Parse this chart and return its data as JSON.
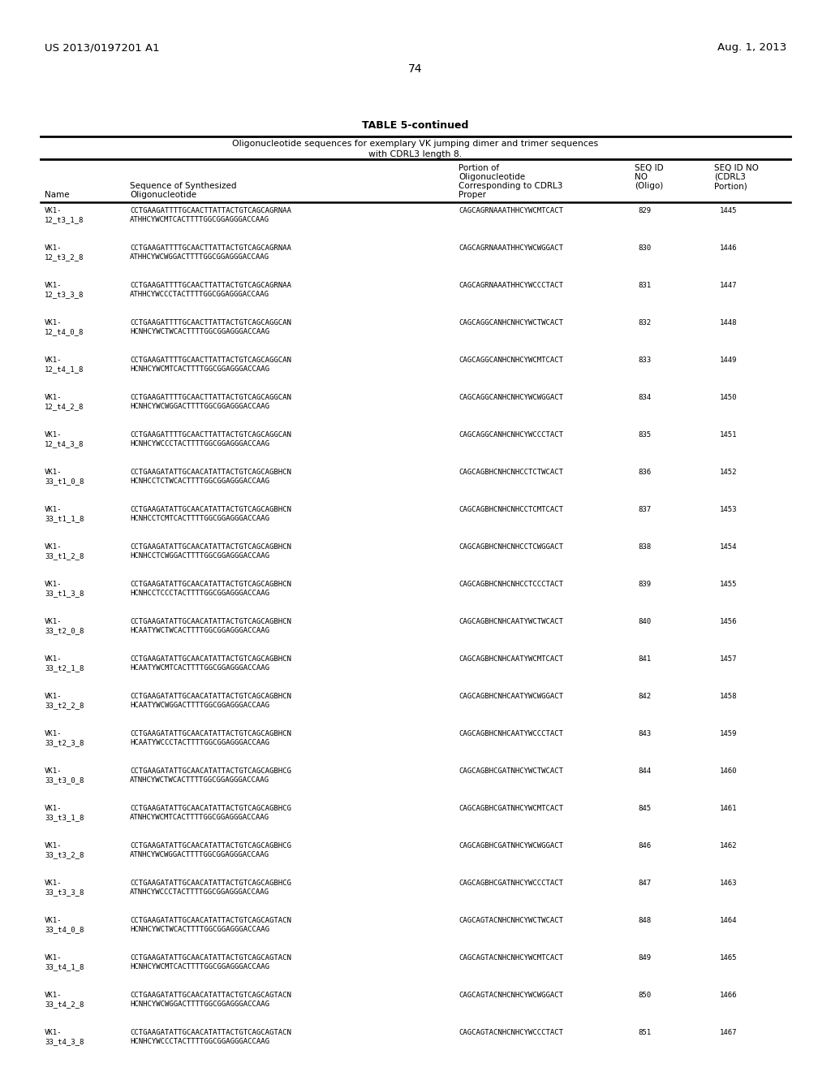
{
  "patent_left": "US 2013/0197201 A1",
  "patent_right": "Aug. 1, 2013",
  "page_number": "74",
  "table_title": "TABLE 5-continued",
  "table_subtitle1": "Oligonucleotide sequences for exemplary VK jumping dimer and trimer sequences",
  "table_subtitle2": "with CDRL3 length 8.",
  "rows": [
    {
      "name1": "VK1-",
      "name2": "12_t3_1_8",
      "seq1": "CCTGAAGATTTTGCAACTTATTACTGTCAGCAGRNAA",
      "seq2": "ATHHCYWCMTCACTTTTGGCGGAGGGACCAAG",
      "cdrl": "CAGCAGRNAAATHHCYWCMTCACT",
      "seqid": "829",
      "cdrl3": "1445"
    },
    {
      "name1": "VK1-",
      "name2": "12_t3_2_8",
      "seq1": "CCTGAAGATTTTGCAACTTATTACTGTCAGCAGRNAA",
      "seq2": "ATHHCYWCWGGACTTTTGGCGGAGGGACCAAG",
      "cdrl": "CAGCAGRNAAATHHCYWCWGGACT",
      "seqid": "830",
      "cdrl3": "1446"
    },
    {
      "name1": "VK1-",
      "name2": "12_t3_3_8",
      "seq1": "CCTGAAGATTTTGCAACTTATTACTGTCAGCAGRNAA",
      "seq2": "ATHHCYWCCCTACTTTTGGCGGAGGGACCAAG",
      "cdrl": "CAGCAGRNAAATHHCYWCCCTACT",
      "seqid": "831",
      "cdrl3": "1447"
    },
    {
      "name1": "VK1-",
      "name2": "12_t4_0_8",
      "seq1": "CCTGAAGATTTTGCAACTTATTACTGTCAGCAGGCAN",
      "seq2": "HCNHCYWCTWCACTTTTGGCGGAGGGACCAAG",
      "cdrl": "CAGCAGGCANHCNHCYWCTWCACT",
      "seqid": "832",
      "cdrl3": "1448"
    },
    {
      "name1": "VK1-",
      "name2": "12_t4_1_8",
      "seq1": "CCTGAAGATTTTGCAACTTATTACTGTCAGCAGGCAN",
      "seq2": "HCNHCYWCMTCACTTTTGGCGGAGGGACCAAG",
      "cdrl": "CAGCAGGCANHCNHCYWCMTCACT",
      "seqid": "833",
      "cdrl3": "1449"
    },
    {
      "name1": "VK1-",
      "name2": "12_t4_2_8",
      "seq1": "CCTGAAGATTTTGCAACTTATTACTGTCAGCAGGCAN",
      "seq2": "HCNHCYWCWGGACTTTTGGCGGAGGGACCAAG",
      "cdrl": "CAGCAGGCANHCNHCYWCWGGACT",
      "seqid": "834",
      "cdrl3": "1450"
    },
    {
      "name1": "VK1-",
      "name2": "12_t4_3_8",
      "seq1": "CCTGAAGATTTTGCAACTTATTACTGTCAGCAGGCAN",
      "seq2": "HCNHCYWCCCTACTTTTGGCGGAGGGACCAAG",
      "cdrl": "CAGCAGGCANHCNHCYWCCCTACT",
      "seqid": "835",
      "cdrl3": "1451"
    },
    {
      "name1": "VK1-",
      "name2": "33_t1_0_8",
      "seq1": "CCTGAAGATATTGCAACATATTACTGTCAGCAGBHCN",
      "seq2": "HCNHCCTCTWCACTTTTGGCGGAGGGACCAAG",
      "cdrl": "CAGCAGBHCNHCNHCCTCTWCACT",
      "seqid": "836",
      "cdrl3": "1452"
    },
    {
      "name1": "VK1-",
      "name2": "33_t1_1_8",
      "seq1": "CCTGAAGATATTGCAACATATTACTGTCAGCAGBHCN",
      "seq2": "HCNHCCTCMTCACTTTTGGCGGAGGGACCAAG",
      "cdrl": "CAGCAGBHCNHCNHCCTCMTCACT",
      "seqid": "837",
      "cdrl3": "1453"
    },
    {
      "name1": "VK1-",
      "name2": "33_t1_2_8",
      "seq1": "CCTGAAGATATTGCAACATATTACTGTCAGCAGBHCN",
      "seq2": "HCNHCCTCWGGACTTTTGGCGGAGGGACCAAG",
      "cdrl": "CAGCAGBHCNHCNHCCTCWGGACT",
      "seqid": "838",
      "cdrl3": "1454"
    },
    {
      "name1": "VK1-",
      "name2": "33_t1_3_8",
      "seq1": "CCTGAAGATATTGCAACATATTACTGTCAGCAGBHCN",
      "seq2": "HCNHCCTCCCTACTTTTGGCGGAGGGACCAAG",
      "cdrl": "CAGCAGBHCNHCNHCCTCCCTACT",
      "seqid": "839",
      "cdrl3": "1455"
    },
    {
      "name1": "VK1-",
      "name2": "33_t2_0_8",
      "seq1": "CCTGAAGATATTGCAACATATTACTGTCAGCAGBHCN",
      "seq2": "HCAATYWCTWCACTTTTGGCGGAGGGACCAAG",
      "cdrl": "CAGCAGBHCNHCAATYWCTWCACT",
      "seqid": "840",
      "cdrl3": "1456"
    },
    {
      "name1": "VK1-",
      "name2": "33_t2_1_8",
      "seq1": "CCTGAAGATATTGCAACATATTACTGTCAGCAGBHCN",
      "seq2": "HCAATYWCMTCACTTTTGGCGGAGGGACCAAG",
      "cdrl": "CAGCAGBHCNHCAATYWCMTCACT",
      "seqid": "841",
      "cdrl3": "1457"
    },
    {
      "name1": "VK1-",
      "name2": "33_t2_2_8",
      "seq1": "CCTGAAGATATTGCAACATATTACTGTCAGCAGBHCN",
      "seq2": "HCAATYWCWGGACTTTTGGCGGAGGGACCAAG",
      "cdrl": "CAGCAGBHCNHCAATYWCWGGACT",
      "seqid": "842",
      "cdrl3": "1458"
    },
    {
      "name1": "VK1-",
      "name2": "33_t2_3_8",
      "seq1": "CCTGAAGATATTGCAACATATTACTGTCAGCAGBHCN",
      "seq2": "HCAATYWCCCTACTTTTGGCGGAGGGACCAAG",
      "cdrl": "CAGCAGBHCNHCAATYWCCCTACT",
      "seqid": "843",
      "cdrl3": "1459"
    },
    {
      "name1": "VK1-",
      "name2": "33_t3_0_8",
      "seq1": "CCTGAAGATATTGCAACATATTACTGTCAGCAGBHCG",
      "seq2": "ATNHCYWCTWCACTTTTGGCGGAGGGACCAAG",
      "cdrl": "CAGCAGBHCGATNHCYWCTWCACT",
      "seqid": "844",
      "cdrl3": "1460"
    },
    {
      "name1": "VK1-",
      "name2": "33_t3_1_8",
      "seq1": "CCTGAAGATATTGCAACATATTACTGTCAGCAGBHCG",
      "seq2": "ATNHCYWCMTCACTTTTGGCGGAGGGACCAAG",
      "cdrl": "CAGCAGBHCGATNHCYWCMTCACT",
      "seqid": "845",
      "cdrl3": "1461"
    },
    {
      "name1": "VK1-",
      "name2": "33_t3_2_8",
      "seq1": "CCTGAAGATATTGCAACATATTACTGTCAGCAGBHCG",
      "seq2": "ATNHCYWCWGGACTTTTGGCGGAGGGACCAAG",
      "cdrl": "CAGCAGBHCGATNHCYWCWGGACT",
      "seqid": "846",
      "cdrl3": "1462"
    },
    {
      "name1": "VK1-",
      "name2": "33_t3_3_8",
      "seq1": "CCTGAAGATATTGCAACATATTACTGTCAGCAGBHCG",
      "seq2": "ATNHCYWCCCTACTTTTGGCGGAGGGACCAAG",
      "cdrl": "CAGCAGBHCGATNHCYWCCCTACT",
      "seqid": "847",
      "cdrl3": "1463"
    },
    {
      "name1": "VK1-",
      "name2": "33_t4_0_8",
      "seq1": "CCTGAAGATATTGCAACATATTACTGTCAGCAGTACN",
      "seq2": "HCNHCYWCTWCACTTTTGGCGGAGGGACCAAG",
      "cdrl": "CAGCAGTACNHCNHCYWCTWCACT",
      "seqid": "848",
      "cdrl3": "1464"
    },
    {
      "name1": "VK1-",
      "name2": "33_t4_1_8",
      "seq1": "CCTGAAGATATTGCAACATATTACTGTCAGCAGTACN",
      "seq2": "HCNHCYWCMTCACTTTTGGCGGAGGGACCAAG",
      "cdrl": "CAGCAGTACNHCNHCYWCMTCACT",
      "seqid": "849",
      "cdrl3": "1465"
    },
    {
      "name1": "VK1-",
      "name2": "33_t4_2_8",
      "seq1": "CCTGAAGATATTGCAACATATTACTGTCAGCAGTACN",
      "seq2": "HCNHCYWCWGGACTTTTGGCGGAGGGACCAAG",
      "cdrl": "CAGCAGTACNHCNHCYWCWGGACT",
      "seqid": "850",
      "cdrl3": "1466"
    },
    {
      "name1": "VK1-",
      "name2": "33_t4_3_8",
      "seq1": "CCTGAAGATATTGCAACATATTACTGTCAGCAGTACN",
      "seq2": "HCNHCYWCCCTACTTTTGGCGGAGGGACCAAG",
      "cdrl": "CAGCAGTACNHCNHCYWCCCTACT",
      "seqid": "851",
      "cdrl3": "1467"
    }
  ],
  "bg_color": "#ffffff",
  "text_color": "#000000"
}
